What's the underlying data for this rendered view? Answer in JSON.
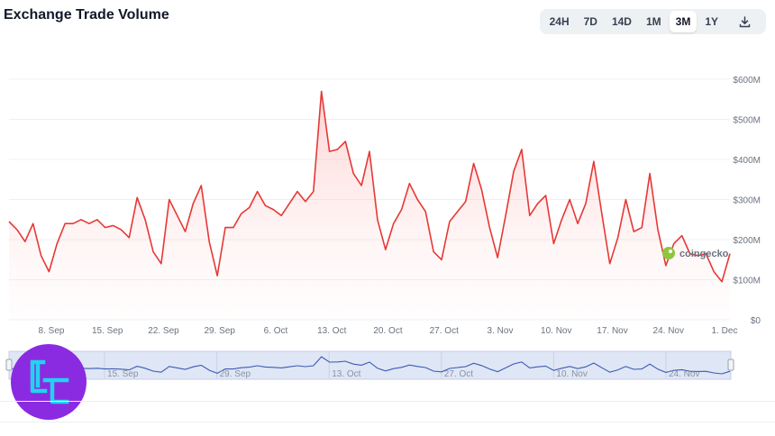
{
  "header": {
    "title": "Exchange Trade Volume"
  },
  "range_selector": {
    "options": [
      "24H",
      "7D",
      "14D",
      "1M",
      "3M",
      "1Y"
    ],
    "selected": "3M",
    "download_icon": "download-icon"
  },
  "watermark": {
    "text": "coingecko"
  },
  "colors": {
    "line": "#e53935",
    "navigator_line": "#3b5bb5",
    "navigator_fill": "#dfe6f5",
    "logo_bg": "#8a2be2",
    "logo_fg": "#22d3ee"
  },
  "chart_data": {
    "type": "area",
    "title": "Exchange Trade Volume",
    "xlabel": "",
    "ylabel": "",
    "x_tick_labels": [
      "8. Sep",
      "15. Sep",
      "22. Sep",
      "29. Sep",
      "6. Oct",
      "13. Oct",
      "20. Oct",
      "27. Oct",
      "3. Nov",
      "10. Nov",
      "17. Nov",
      "24. Nov",
      "1. Dec"
    ],
    "y_tick_labels": [
      "$0",
      "$100M",
      "$200M",
      "$300M",
      "$400M",
      "$500M",
      "$600M"
    ],
    "ylim": [
      0,
      600
    ],
    "y_unit": "USD millions",
    "grid": true,
    "series": [
      {
        "values": [
          245,
          225,
          195,
          240,
          160,
          120,
          190,
          240,
          240,
          250,
          240,
          250,
          230,
          235,
          225,
          205,
          305,
          250,
          170,
          140,
          300,
          260,
          220,
          290,
          335,
          195,
          110,
          230,
          230,
          265,
          280,
          320,
          285,
          275,
          260,
          290,
          320,
          295,
          320,
          570,
          420,
          425,
          445,
          365,
          335,
          420,
          250,
          175,
          240,
          275,
          340,
          300,
          270,
          170,
          150,
          245,
          270,
          295,
          390,
          325,
          230,
          155,
          260,
          370,
          425,
          260,
          290,
          310,
          190,
          250,
          300,
          240,
          290,
          395,
          265,
          140,
          205,
          300,
          220,
          230,
          365,
          225,
          135,
          190,
          210,
          165,
          160,
          165,
          120,
          95,
          165
        ]
      }
    ],
    "navigator": {
      "x_tick_labels": [
        "15. Sep",
        "29. Sep",
        "13. Oct",
        "27. Oct",
        "10. Nov",
        "24. Nov"
      ]
    }
  }
}
